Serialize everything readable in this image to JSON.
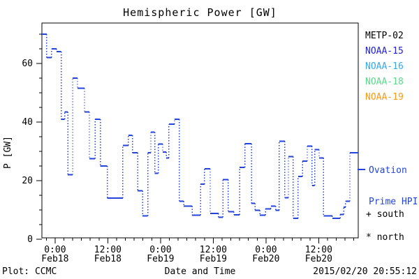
{
  "title": "Hemispheric Power [GW]",
  "footer": {
    "left": "Plot: CCMC",
    "right": "2015/02/20 20:55:12"
  },
  "legend": {
    "items": [
      {
        "label": "METP-02",
        "color": "#000000"
      },
      {
        "label": "NOAA-15",
        "color": "#2222dd"
      },
      {
        "label": "NOAA-16",
        "color": "#33aaee"
      },
      {
        "label": "NOAA-18",
        "color": "#55dd88"
      },
      {
        "label": "NOAA-19",
        "color": "#ff9911"
      }
    ]
  },
  "annotations": {
    "ovation_line1": "Ovation",
    "ovation_line2": "Prime HPI",
    "ovation_color": "#2244dd",
    "south_label": "+ south",
    "north_label": "* north"
  },
  "chart_data": {
    "type": "line",
    "subtype": "step-post with dotted risers",
    "title": "Hemispheric Power [GW]",
    "xlabel": "Date and Time",
    "ylabel": "P [GW]",
    "line_color": "#2244dd",
    "axis_color": "#000000",
    "grid": false,
    "legend_position": "right-outside",
    "x_unit": "hours since 2015-02-18 00:00",
    "xlim": [
      -3,
      69
    ],
    "ylim": [
      0,
      73
    ],
    "y_ticks": {
      "major": [
        0,
        20,
        40,
        60
      ],
      "minor_interval": 5
    },
    "x_ticks": {
      "minor_interval_hours": 2,
      "major": [
        {
          "t": 0,
          "time": "0:00",
          "date": "Feb18"
        },
        {
          "t": 12,
          "time": "12:00",
          "date": "Feb18"
        },
        {
          "t": 24,
          "time": "0:00",
          "date": "Feb19"
        },
        {
          "t": 36,
          "time": "12:00",
          "date": "Feb19"
        },
        {
          "t": 48,
          "time": "0:00",
          "date": "Feb20"
        },
        {
          "t": 60,
          "time": "12:00",
          "date": "Feb20"
        }
      ]
    },
    "series_name": "Ovation Prime HPI",
    "steps": [
      [
        -3.0,
        70
      ],
      [
        -1.9,
        62
      ],
      [
        -0.8,
        65
      ],
      [
        0.3,
        64
      ],
      [
        1.4,
        41
      ],
      [
        2.2,
        43.5
      ],
      [
        2.9,
        22
      ],
      [
        4.0,
        55
      ],
      [
        5.1,
        51.5
      ],
      [
        6.7,
        43.5
      ],
      [
        7.8,
        27.5
      ],
      [
        9.1,
        41
      ],
      [
        10.3,
        25
      ],
      [
        11.9,
        14
      ],
      [
        15.4,
        32
      ],
      [
        16.7,
        35.5
      ],
      [
        17.6,
        29.5
      ],
      [
        18.8,
        16.5
      ],
      [
        19.9,
        8
      ],
      [
        21.1,
        29.5
      ],
      [
        21.8,
        36.5
      ],
      [
        22.7,
        22.5
      ],
      [
        23.5,
        32.5
      ],
      [
        24.5,
        29.8
      ],
      [
        25.3,
        27.7
      ],
      [
        25.9,
        39.3
      ],
      [
        27.2,
        41
      ],
      [
        28.3,
        13
      ],
      [
        29.3,
        11.3
      ],
      [
        31.2,
        8.2
      ],
      [
        33.1,
        18.8
      ],
      [
        34.0,
        24
      ],
      [
        35.3,
        8.8
      ],
      [
        37.2,
        7.5
      ],
      [
        38.2,
        20.3
      ],
      [
        39.4,
        9.4
      ],
      [
        40.7,
        8.3
      ],
      [
        42.0,
        24.5
      ],
      [
        43.2,
        32.6
      ],
      [
        44.7,
        12.3
      ],
      [
        45.5,
        9.9
      ],
      [
        46.6,
        8.2
      ],
      [
        47.9,
        10.4
      ],
      [
        49.1,
        11.3
      ],
      [
        50.2,
        9.9
      ],
      [
        51.0,
        33.5
      ],
      [
        52.3,
        14.2
      ],
      [
        53.1,
        28.2
      ],
      [
        54.2,
        7.2
      ],
      [
        55.3,
        21.4
      ],
      [
        56.3,
        26.7
      ],
      [
        57.4,
        31.8
      ],
      [
        58.5,
        18.3
      ],
      [
        59.1,
        30.6
      ],
      [
        60.1,
        27.7
      ],
      [
        61.1,
        8.0
      ],
      [
        63.1,
        7.1
      ],
      [
        64.9,
        8.5
      ],
      [
        65.7,
        11
      ],
      [
        66.1,
        13
      ],
      [
        67.1,
        29.5
      ]
    ],
    "end_t": 69.0
  }
}
